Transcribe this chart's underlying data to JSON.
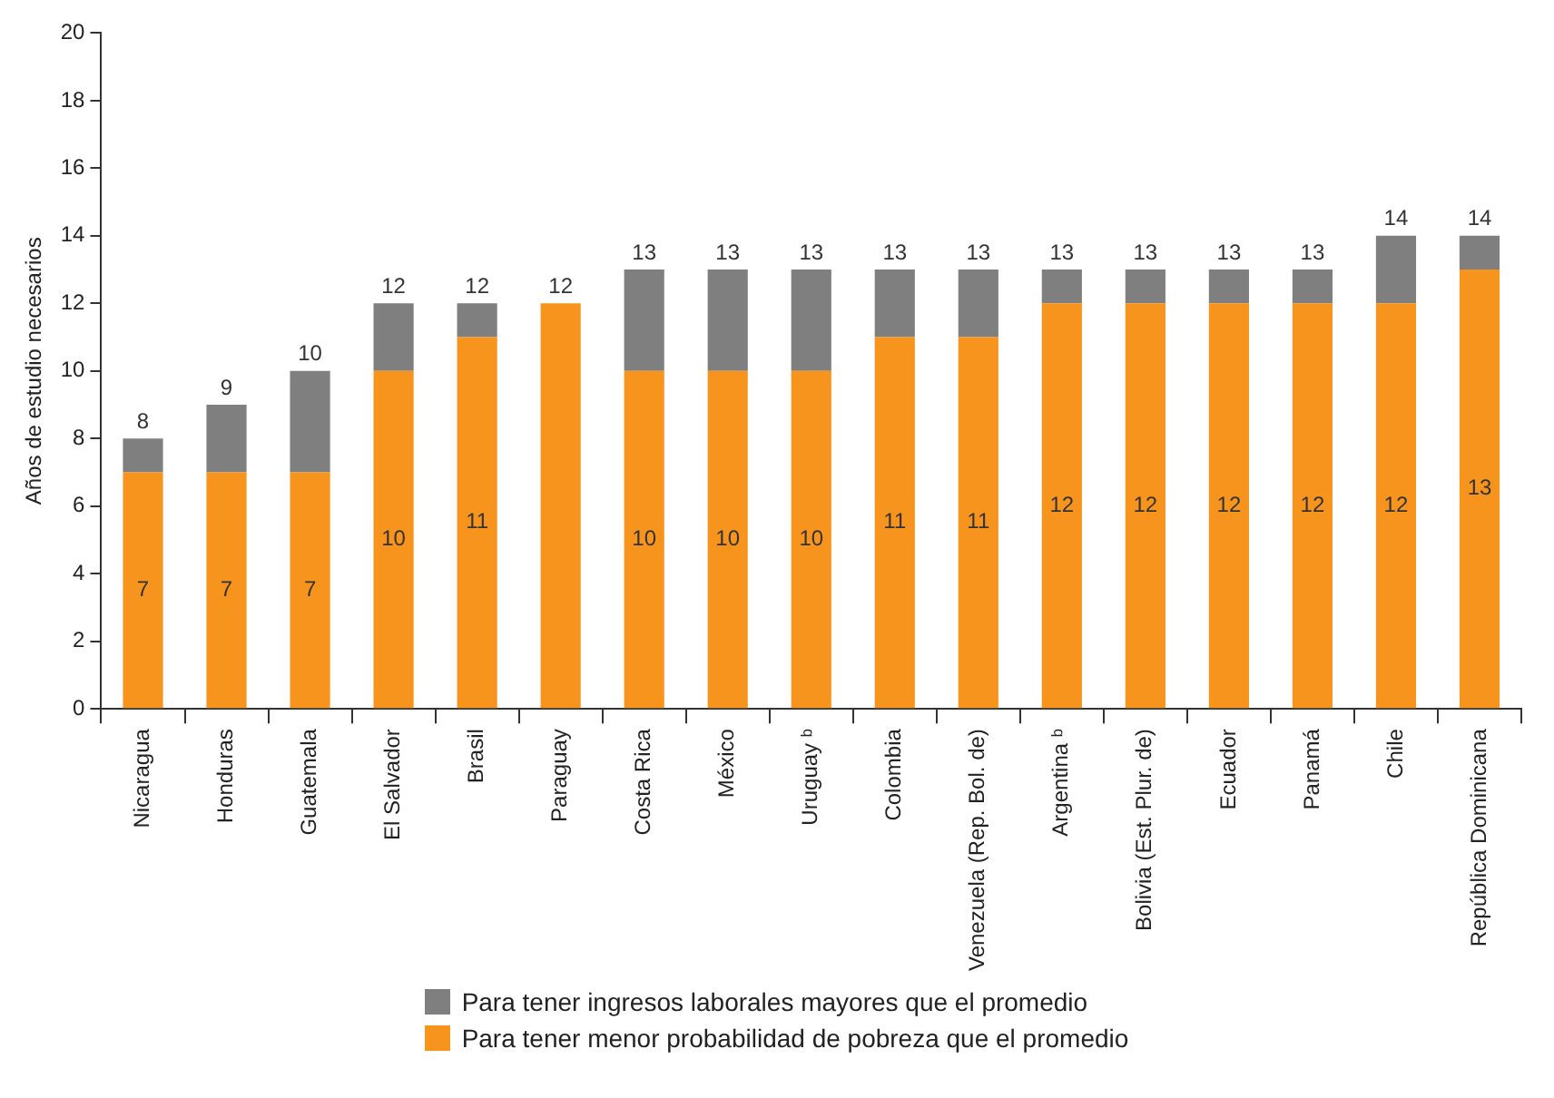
{
  "chart_data": {
    "type": "bar",
    "stacked": true,
    "ylabel": "Años de estudio necesarios",
    "categories": [
      "Nicaragua",
      "Honduras",
      "Guatemala",
      "El Salvador",
      "Brasil",
      "Paraguay",
      "Costa Rica",
      "México",
      "Uruguay ᵇ",
      "Colombia",
      "Venezuela (Rep. Bol. de)",
      "Argentina ᵇ",
      "Bolivia (Est. Plur. de)",
      "Ecuador",
      "Panamá",
      "Chile",
      "República Dominicana"
    ],
    "series": [
      {
        "name": "Para tener menor probabilidad de pobreza que el promedio",
        "color": "#f7941d",
        "values": [
          7,
          7,
          7,
          10,
          11,
          12,
          10,
          10,
          10,
          11,
          11,
          12,
          12,
          12,
          12,
          12,
          13
        ],
        "value_labels": [
          "7",
          "7",
          "7",
          "10",
          "11",
          null,
          "10",
          "10",
          "10",
          "11",
          "11",
          "12",
          "12",
          "12",
          "12",
          "12",
          "13"
        ]
      },
      {
        "name": "Para tener ingresos laborales mayores que el promedio",
        "color": "#7f7f7f",
        "values": [
          1,
          2,
          3,
          2,
          1,
          0,
          3,
          3,
          3,
          2,
          2,
          1,
          1,
          1,
          1,
          2,
          1
        ]
      }
    ],
    "totals": [
      "8",
      "9",
      "10",
      "12",
      "12",
      "12",
      "13",
      "13",
      "13",
      "13",
      "13",
      "13",
      "13",
      "13",
      "13",
      "14",
      "14"
    ],
    "ylim": [
      0,
      20
    ],
    "yticks": [
      0,
      2,
      4,
      6,
      8,
      10,
      12,
      14,
      16,
      18,
      20
    ],
    "grid": false,
    "legend": "bottom"
  }
}
